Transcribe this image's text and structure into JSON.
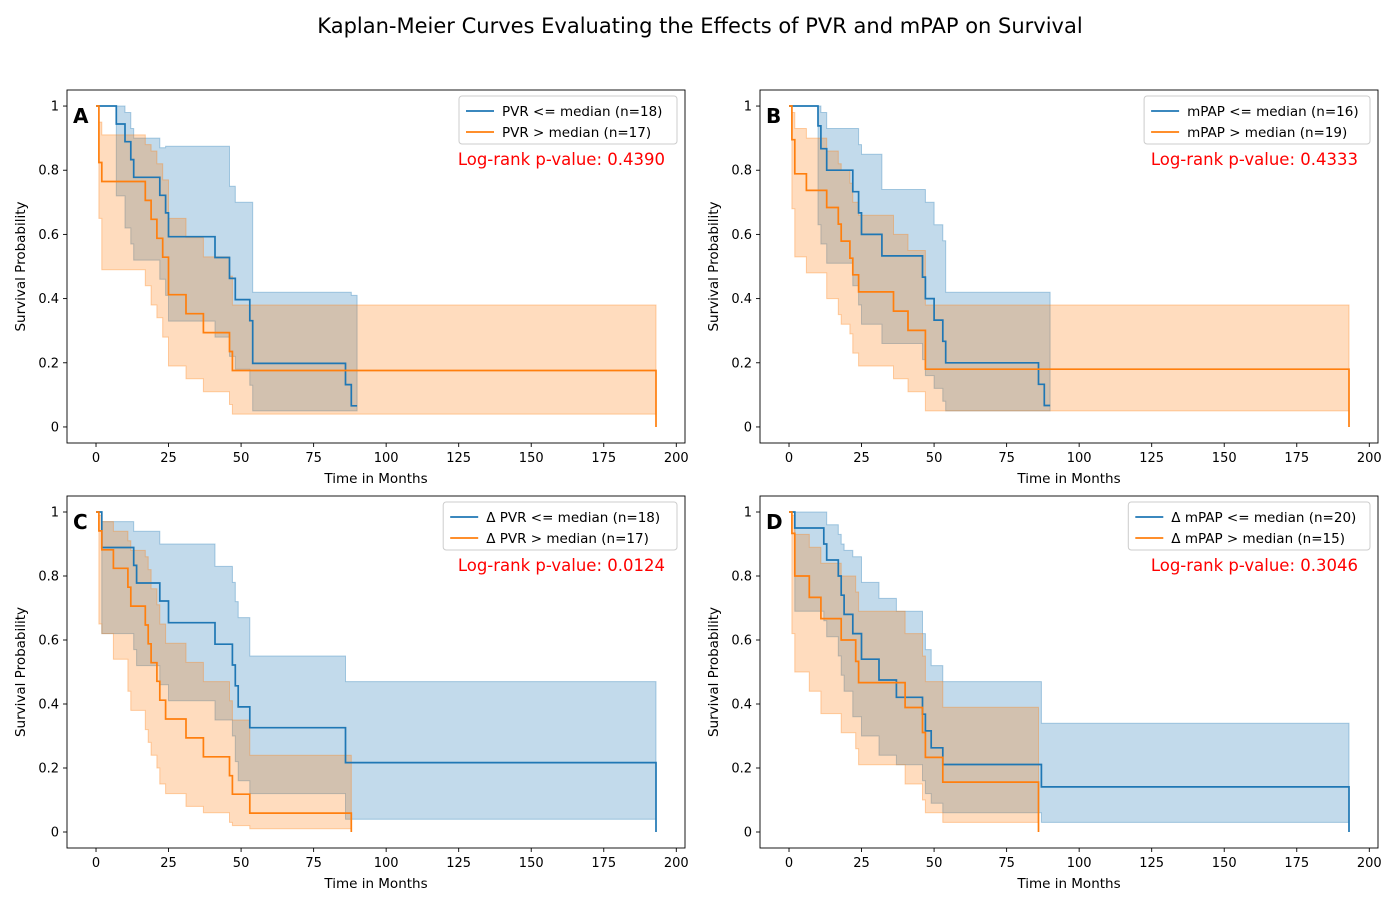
{
  "figure": {
    "title": "Kaplan-Meier Curves Evaluating the Effects of PVR and mPAP on Survival"
  },
  "colors": {
    "series_low": "#1f77b4",
    "series_high": "#ff7f0e",
    "pvalue_text": "#ff0000"
  },
  "chart_data": [
    {
      "type": "line",
      "panel_label": "A",
      "xlabel": "Time in Months",
      "ylabel": "Survival Probability",
      "xlim": [
        -10,
        203
      ],
      "ylim": [
        -0.05,
        1.05
      ],
      "xticks": [
        0,
        25,
        50,
        75,
        100,
        125,
        150,
        175,
        200
      ],
      "yticks": [
        0.0,
        0.2,
        0.4,
        0.6,
        0.8,
        1.0
      ],
      "annotation": "Log-rank p-value: 0.4390",
      "legend_position": "top-right",
      "series": [
        {
          "name": "PVR <= median (n=18)",
          "color": "#1f77b4",
          "x": [
            0,
            7,
            10,
            12,
            13,
            17,
            22,
            24,
            25,
            41,
            46,
            48,
            53,
            54,
            86,
            88,
            90
          ],
          "y": [
            1.0,
            0.944,
            0.889,
            0.833,
            0.778,
            0.778,
            0.722,
            0.667,
            0.593,
            0.528,
            0.463,
            0.397,
            0.331,
            0.198,
            0.132,
            0.066,
            0.066
          ],
          "upper": [
            1.0,
            1.0,
            0.98,
            0.93,
            0.9,
            0.9,
            0.87,
            0.875,
            0.875,
            0.875,
            0.75,
            0.7,
            0.7,
            0.42,
            0.42,
            0.41,
            0.41
          ],
          "lower": [
            1.0,
            0.72,
            0.62,
            0.57,
            0.52,
            0.52,
            0.46,
            0.41,
            0.33,
            0.28,
            0.22,
            0.18,
            0.13,
            0.05,
            0.05,
            0.05,
            0.05
          ]
        },
        {
          "name": "PVR > median (n=17)",
          "color": "#ff7f0e",
          "x": [
            0,
            1,
            2,
            17,
            19,
            21,
            23,
            25,
            31,
            37,
            46,
            47,
            193,
            193
          ],
          "y": [
            1.0,
            0.824,
            0.765,
            0.706,
            0.647,
            0.588,
            0.529,
            0.412,
            0.353,
            0.294,
            0.235,
            0.176,
            0.176,
            0.0
          ],
          "upper": [
            1.0,
            0.95,
            0.91,
            0.88,
            0.86,
            0.82,
            0.77,
            0.65,
            0.59,
            0.53,
            0.47,
            0.38,
            0.38,
            0.38
          ],
          "lower": [
            1.0,
            0.65,
            0.49,
            0.44,
            0.38,
            0.34,
            0.28,
            0.19,
            0.15,
            0.11,
            0.07,
            0.04,
            0.04,
            0.04
          ]
        }
      ]
    },
    {
      "type": "line",
      "panel_label": "B",
      "xlabel": "Time in Months",
      "ylabel": "Survival Probability",
      "xlim": [
        -10,
        203
      ],
      "ylim": [
        -0.05,
        1.05
      ],
      "xticks": [
        0,
        25,
        50,
        75,
        100,
        125,
        150,
        175,
        200
      ],
      "yticks": [
        0.0,
        0.2,
        0.4,
        0.6,
        0.8,
        1.0
      ],
      "annotation": "Log-rank p-value: 0.4333",
      "legend_position": "top-right",
      "series": [
        {
          "name": "mPAP <= median (n=16)",
          "color": "#1f77b4",
          "x": [
            0,
            10,
            11,
            13,
            22,
            24,
            25,
            32,
            46,
            47,
            50,
            53,
            54,
            86,
            88,
            90
          ],
          "y": [
            1.0,
            0.938,
            0.867,
            0.8,
            0.733,
            0.667,
            0.6,
            0.533,
            0.467,
            0.4,
            0.333,
            0.267,
            0.2,
            0.133,
            0.067,
            0.067
          ],
          "upper": [
            1.0,
            1.0,
            0.98,
            0.93,
            0.93,
            0.88,
            0.85,
            0.74,
            0.74,
            0.7,
            0.63,
            0.58,
            0.42,
            0.42,
            0.42,
            0.42
          ],
          "lower": [
            1.0,
            0.63,
            0.57,
            0.51,
            0.44,
            0.38,
            0.32,
            0.26,
            0.21,
            0.16,
            0.12,
            0.08,
            0.05,
            0.05,
            0.05,
            0.05
          ]
        },
        {
          "name": "mPAP > median (n=19)",
          "color": "#ff7f0e",
          "x": [
            0,
            1,
            2,
            6,
            13,
            17,
            18,
            21,
            22,
            24,
            36,
            41,
            47,
            193,
            193
          ],
          "y": [
            1.0,
            0.895,
            0.789,
            0.737,
            0.684,
            0.632,
            0.579,
            0.526,
            0.474,
            0.421,
            0.361,
            0.301,
            0.18,
            0.18,
            0.0
          ],
          "upper": [
            1.0,
            0.98,
            0.93,
            0.9,
            0.86,
            0.82,
            0.8,
            0.76,
            0.7,
            0.66,
            0.6,
            0.55,
            0.38,
            0.38,
            0.38
          ],
          "lower": [
            1.0,
            0.68,
            0.53,
            0.48,
            0.4,
            0.35,
            0.32,
            0.29,
            0.23,
            0.19,
            0.15,
            0.11,
            0.05,
            0.05,
            0.05
          ]
        }
      ]
    },
    {
      "type": "line",
      "panel_label": "C",
      "xlabel": "Time in Months",
      "ylabel": "Survival Probability",
      "xlim": [
        -10,
        203
      ],
      "ylim": [
        -0.05,
        1.05
      ],
      "xticks": [
        0,
        25,
        50,
        75,
        100,
        125,
        150,
        175,
        200
      ],
      "yticks": [
        0.0,
        0.2,
        0.4,
        0.6,
        0.8,
        1.0
      ],
      "annotation": "Log-rank p-value: 0.0124",
      "legend_position": "top-right",
      "series": [
        {
          "name": "Δ PVR <= median (n=18)",
          "color": "#1f77b4",
          "x": [
            0,
            2,
            13,
            14,
            22,
            25,
            41,
            47,
            48,
            49,
            53,
            54,
            86,
            193,
            193
          ],
          "y": [
            1.0,
            0.889,
            0.833,
            0.778,
            0.722,
            0.654,
            0.587,
            0.522,
            0.457,
            0.391,
            0.326,
            0.326,
            0.217,
            0.217,
            0.0
          ],
          "upper": [
            1.0,
            0.97,
            0.94,
            0.94,
            0.9,
            0.9,
            0.83,
            0.78,
            0.72,
            0.67,
            0.55,
            0.55,
            0.47,
            0.47,
            0.47
          ],
          "lower": [
            1.0,
            0.62,
            0.57,
            0.52,
            0.46,
            0.41,
            0.35,
            0.3,
            0.22,
            0.16,
            0.12,
            0.12,
            0.04,
            0.04,
            0.04
          ]
        },
        {
          "name": "Δ PVR > median (n=17)",
          "color": "#ff7f0e",
          "x": [
            0,
            1,
            2,
            6,
            11,
            12,
            17,
            18,
            19,
            21,
            22,
            24,
            31,
            37,
            46,
            47,
            53,
            88,
            88
          ],
          "y": [
            1.0,
            0.941,
            0.882,
            0.824,
            0.765,
            0.706,
            0.647,
            0.588,
            0.529,
            0.471,
            0.412,
            0.353,
            0.294,
            0.235,
            0.176,
            0.118,
            0.059,
            0.059,
            0.0
          ],
          "upper": [
            1.0,
            0.99,
            0.97,
            0.94,
            0.91,
            0.88,
            0.86,
            0.82,
            0.76,
            0.71,
            0.65,
            0.59,
            0.53,
            0.47,
            0.41,
            0.35,
            0.24,
            0.24,
            0.24
          ],
          "lower": [
            1.0,
            0.65,
            0.62,
            0.54,
            0.44,
            0.38,
            0.32,
            0.28,
            0.24,
            0.2,
            0.15,
            0.12,
            0.08,
            0.06,
            0.03,
            0.02,
            0.01,
            0.01,
            0.01
          ]
        }
      ]
    },
    {
      "type": "line",
      "panel_label": "D",
      "xlabel": "Time in Months",
      "ylabel": "Survival Probability",
      "xlim": [
        -10,
        203
      ],
      "ylim": [
        -0.05,
        1.05
      ],
      "xticks": [
        0,
        25,
        50,
        75,
        100,
        125,
        150,
        175,
        200
      ],
      "yticks": [
        0.0,
        0.2,
        0.4,
        0.6,
        0.8,
        1.0
      ],
      "annotation": "Log-rank p-value: 0.3046",
      "legend_position": "top-right",
      "series": [
        {
          "name": "Δ mPAP <= median (n=20)",
          "color": "#1f77b4",
          "x": [
            0,
            2,
            12,
            13,
            17,
            18,
            19,
            22,
            25,
            31,
            37,
            46,
            47,
            49,
            53,
            87,
            193,
            193
          ],
          "y": [
            1.0,
            0.95,
            0.9,
            0.85,
            0.8,
            0.74,
            0.68,
            0.62,
            0.54,
            0.475,
            0.421,
            0.368,
            0.316,
            0.263,
            0.211,
            0.141,
            0.141,
            0.0
          ],
          "upper": [
            1.0,
            1.0,
            1.0,
            0.96,
            0.93,
            0.9,
            0.88,
            0.86,
            0.78,
            0.73,
            0.69,
            0.62,
            0.57,
            0.52,
            0.47,
            0.34,
            0.34,
            0.34
          ],
          "lower": [
            1.0,
            0.69,
            0.66,
            0.61,
            0.55,
            0.49,
            0.44,
            0.36,
            0.3,
            0.24,
            0.21,
            0.16,
            0.12,
            0.09,
            0.06,
            0.03,
            0.03,
            0.03
          ]
        },
        {
          "name": "Δ mPAP > median (n=15)",
          "color": "#ff7f0e",
          "x": [
            0,
            1,
            2,
            7,
            11,
            18,
            23,
            24,
            25,
            40,
            46,
            47,
            53,
            86,
            86
          ],
          "y": [
            1.0,
            0.933,
            0.8,
            0.733,
            0.667,
            0.6,
            0.533,
            0.467,
            0.467,
            0.389,
            0.311,
            0.233,
            0.156,
            0.156,
            0.0
          ],
          "upper": [
            1.0,
            0.99,
            0.93,
            0.89,
            0.84,
            0.8,
            0.75,
            0.69,
            0.69,
            0.62,
            0.55,
            0.47,
            0.39,
            0.39,
            0.39
          ],
          "lower": [
            1.0,
            0.62,
            0.5,
            0.44,
            0.37,
            0.31,
            0.26,
            0.21,
            0.21,
            0.15,
            0.1,
            0.06,
            0.03,
            0.03,
            0.03
          ]
        }
      ]
    }
  ]
}
